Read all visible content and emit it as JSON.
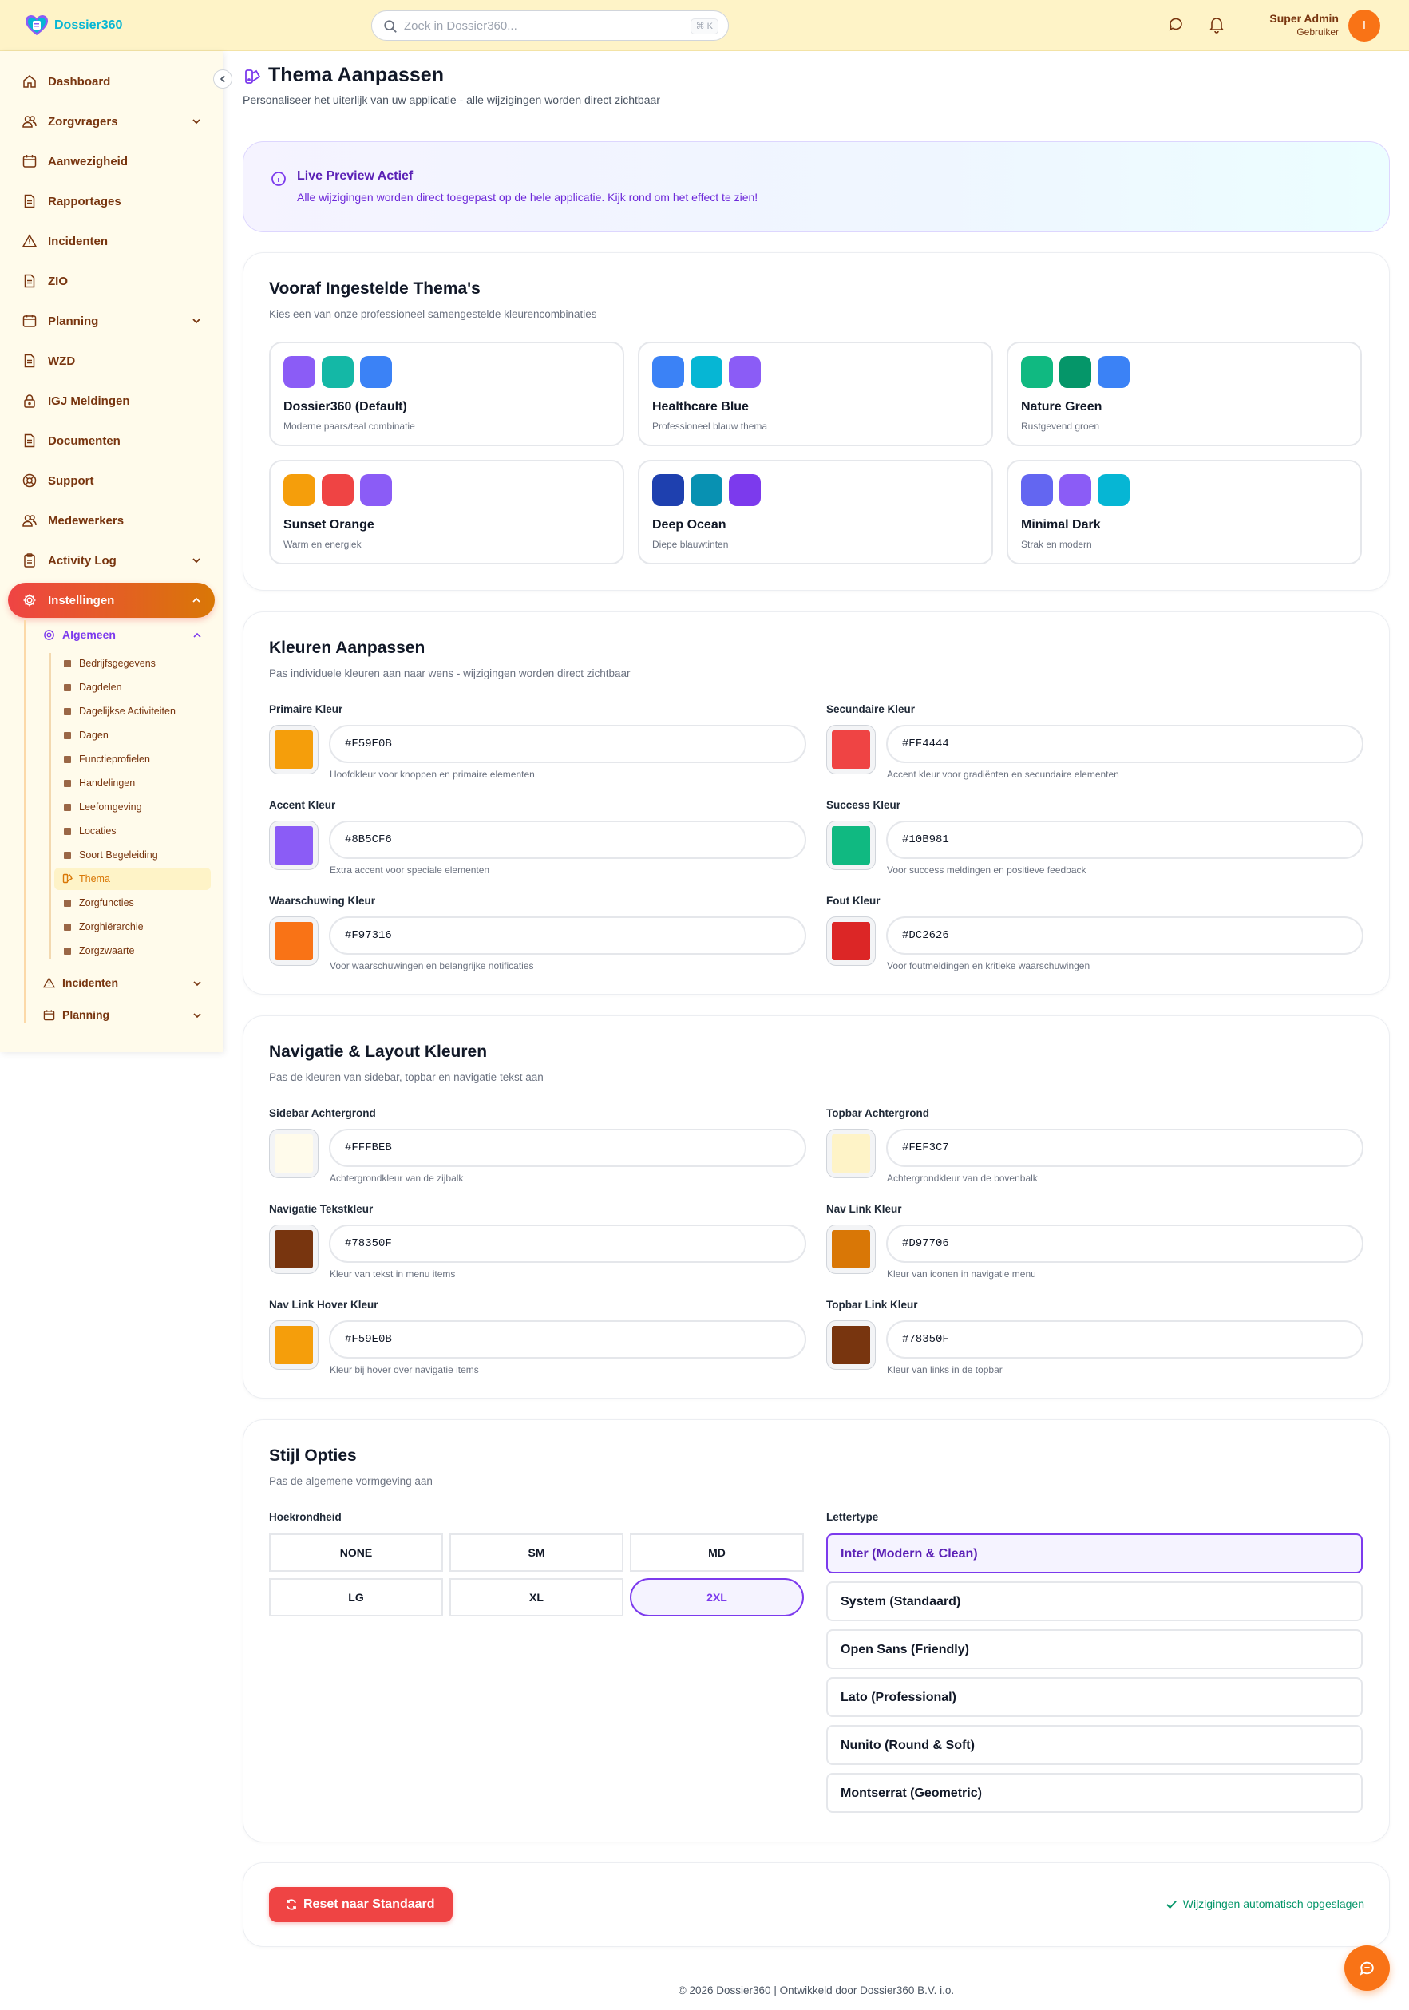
{
  "topbar": {
    "logo_text": "Dossier360",
    "search_placeholder": "Zoek in Dossier360...",
    "search_shortcut": "⌘ K",
    "user_name": "Super Admin",
    "user_role": "Gebruiker",
    "avatar_initial": "I"
  },
  "sidebar": {
    "items": [
      {
        "label": "Dashboard",
        "icon": "home-icon"
      },
      {
        "label": "Zorgvragers",
        "icon": "users-icon"
      },
      {
        "label": "Aanwezigheid",
        "icon": "calendar-icon"
      },
      {
        "label": "Rapportages",
        "icon": "document-icon"
      },
      {
        "label": "Incidenten",
        "icon": "warning-icon"
      },
      {
        "label": "ZIO",
        "icon": "document-icon"
      },
      {
        "label": "Planning",
        "icon": "calendar-icon"
      },
      {
        "label": "WZD",
        "icon": "document-icon"
      },
      {
        "label": "IGJ Meldingen",
        "icon": "lock-icon"
      },
      {
        "label": "Documenten",
        "icon": "document-icon"
      },
      {
        "label": "Support",
        "icon": "lifebuoy-icon"
      },
      {
        "label": "Medewerkers",
        "icon": "users-icon"
      },
      {
        "label": "Activity Log",
        "icon": "clipboard-icon"
      },
      {
        "label": "Instellingen",
        "icon": "gear-icon"
      }
    ],
    "submenu": {
      "algemeen": "Algemeen",
      "algemeen_items": [
        "Bedrijfsgegevens",
        "Dagdelen",
        "Dagelijkse Activiteiten",
        "Dagen",
        "Functieprofielen",
        "Handelingen",
        "Leefomgeving",
        "Locaties",
        "Soort Begeleiding",
        "Thema",
        "Zorgfuncties",
        "Zorghiërarchie",
        "Zorgzwaarte"
      ],
      "incidenten": "Incidenten",
      "planning": "Planning"
    }
  },
  "page": {
    "title": "Thema Aanpassen",
    "subtitle": "Personaliseer het uiterlijk van uw applicatie - alle wijzigingen worden direct zichtbaar"
  },
  "preview": {
    "title": "Live Preview Actief",
    "text": "Alle wijzigingen worden direct toegepast op de hele applicatie. Kijk rond om het effect te zien!"
  },
  "themes": {
    "title": "Vooraf Ingestelde Thema's",
    "subtitle": "Kies een van onze professioneel samengestelde kleurencombinaties",
    "items": [
      {
        "name": "Dossier360 (Default)",
        "desc": "Moderne paars/teal combinatie",
        "colors": [
          "#8B5CF6",
          "#14B8A6",
          "#3B82F6"
        ]
      },
      {
        "name": "Healthcare Blue",
        "desc": "Professioneel blauw thema",
        "colors": [
          "#3B82F6",
          "#06B6D4",
          "#8B5CF6"
        ]
      },
      {
        "name": "Nature Green",
        "desc": "Rustgevend groen",
        "colors": [
          "#10B981",
          "#059669",
          "#3B82F6"
        ]
      },
      {
        "name": "Sunset Orange",
        "desc": "Warm en energiek",
        "colors": [
          "#F59E0B",
          "#EF4444",
          "#8B5CF6"
        ]
      },
      {
        "name": "Deep Ocean",
        "desc": "Diepe blauwtinten",
        "colors": [
          "#1E40AF",
          "#0891B2",
          "#7C3AED"
        ]
      },
      {
        "name": "Minimal Dark",
        "desc": "Strak en modern",
        "colors": [
          "#6366F1",
          "#8B5CF6",
          "#06B6D4"
        ]
      }
    ]
  },
  "colors": {
    "title": "Kleuren Aanpassen",
    "subtitle": "Pas individuele kleuren aan naar wens - wijzigingen worden direct zichtbaar",
    "fields": [
      {
        "label": "Primaire Kleur",
        "value": "#F59E0B",
        "help": "Hoofdkleur voor knoppen en primaire elementen"
      },
      {
        "label": "Secundaire Kleur",
        "value": "#EF4444",
        "help": "Accent kleur voor gradiënten en secundaire elementen"
      },
      {
        "label": "Accent Kleur",
        "value": "#8B5CF6",
        "help": "Extra accent voor speciale elementen"
      },
      {
        "label": "Success Kleur",
        "value": "#10B981",
        "help": "Voor success meldingen en positieve feedback"
      },
      {
        "label": "Waarschuwing Kleur",
        "value": "#F97316",
        "help": "Voor waarschuwingen en belangrijke notificaties"
      },
      {
        "label": "Fout Kleur",
        "value": "#DC2626",
        "help": "Voor foutmeldingen en kritieke waarschuwingen"
      }
    ]
  },
  "nav_colors": {
    "title": "Navigatie & Layout Kleuren",
    "subtitle": "Pas de kleuren van sidebar, topbar en navigatie tekst aan",
    "fields": [
      {
        "label": "Sidebar Achtergrond",
        "value": "#FFFBEB",
        "help": "Achtergrondkleur van de zijbalk"
      },
      {
        "label": "Topbar Achtergrond",
        "value": "#FEF3C7",
        "help": "Achtergrondkleur van de bovenbalk"
      },
      {
        "label": "Navigatie Tekstkleur",
        "value": "#78350F",
        "help": "Kleur van tekst in menu items"
      },
      {
        "label": "Nav Link Kleur",
        "value": "#D97706",
        "help": "Kleur van iconen in navigatie menu"
      },
      {
        "label": "Nav Link Hover Kleur",
        "value": "#F59E0B",
        "help": "Kleur bij hover over navigatie items"
      },
      {
        "label": "Topbar Link Kleur",
        "value": "#78350F",
        "help": "Kleur van links in de topbar"
      }
    ]
  },
  "style": {
    "title": "Stijl Opties",
    "subtitle": "Pas de algemene vormgeving aan",
    "radius_label": "Hoekrondheid",
    "radius_options": [
      "NONE",
      "SM",
      "MD",
      "LG",
      "XL",
      "2XL"
    ],
    "radius_selected": "2XL",
    "font_label": "Lettertype",
    "font_options": [
      "Inter (Modern & Clean)",
      "System (Standaard)",
      "Open Sans (Friendly)",
      "Lato (Professional)",
      "Nunito (Round & Soft)",
      "Montserrat (Geometric)"
    ],
    "font_selected": "Inter (Modern & Clean)"
  },
  "actions": {
    "reset_label": "Reset naar Standaard",
    "saved_text": "Wijzigingen automatisch opgeslagen"
  },
  "footer": {
    "text": "© 2026 Dossier360 | Ontwikkeld door Dossier360 B.V. i.o."
  }
}
